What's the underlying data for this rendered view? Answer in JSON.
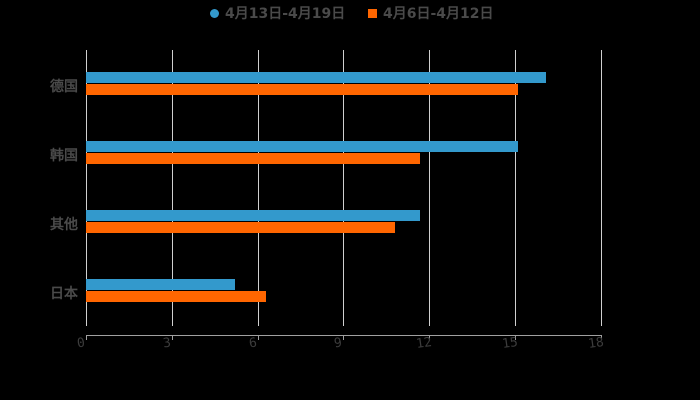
{
  "chart_data": {
    "type": "bar",
    "orientation": "horizontal",
    "title": "",
    "xlabel": "",
    "ylabel": "",
    "categories": [
      "德国",
      "韩国",
      "其他",
      "日本"
    ],
    "series": [
      {
        "name": "4月13日-4月19日",
        "color": "#3399cc",
        "marker": "circle",
        "values": [
          16.1,
          15.1,
          11.7,
          5.2
        ]
      },
      {
        "name": "4月6日-4月12日",
        "color": "#ff6600",
        "marker": "square",
        "values": [
          15.1,
          11.7,
          10.8,
          6.3
        ]
      }
    ],
    "xlim": [
      0,
      18
    ],
    "xticks": [
      "0",
      "3",
      "6",
      "9",
      "12",
      "15",
      "18"
    ],
    "grid": "vertical",
    "legend_position": "top"
  },
  "legend": {
    "items": [
      {
        "label": "4月13日-4月19日"
      },
      {
        "label": "4月6日-4月12日"
      }
    ]
  },
  "axis": {
    "y_labels": [
      "德国",
      "韩国",
      "其他",
      "日本"
    ],
    "x_labels": [
      "0",
      "3",
      "6",
      "9",
      "12",
      "15",
      "18"
    ]
  }
}
